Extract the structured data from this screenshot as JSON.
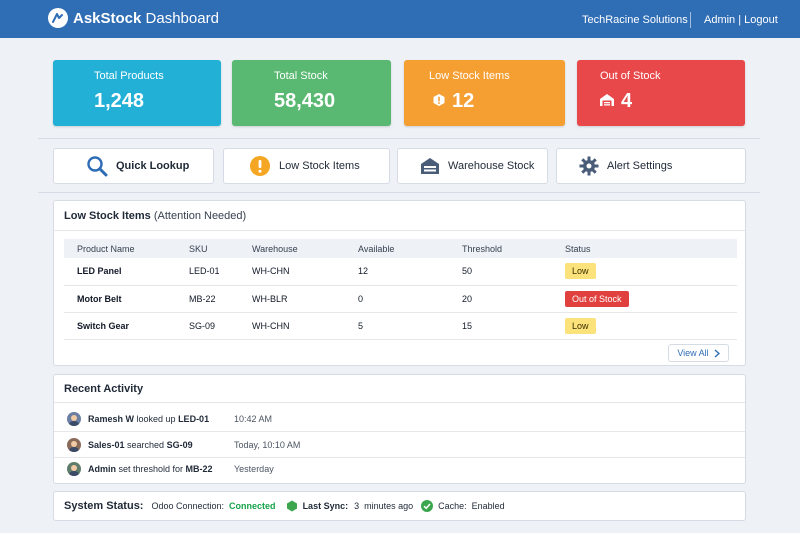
{
  "header": {
    "brand_bold": "AskStock",
    "brand_rest": " Dashboard",
    "company": "TechRacine Solutions",
    "user": "Admin",
    "separator": " | ",
    "logout": "Logout"
  },
  "stats": [
    {
      "label": "Total Products",
      "value": "1,248"
    },
    {
      "label": "Total Stock",
      "value": "58,430"
    },
    {
      "label": "Low Stock Items",
      "value": "12",
      "icon": "alert-icon"
    },
    {
      "label": "Out of Stock",
      "value": "4",
      "icon": "warehouse-icon"
    }
  ],
  "quick_actions": [
    {
      "label": "Quick Lookup",
      "icon": "search-icon"
    },
    {
      "label": "Low Stock Items",
      "icon": "exclamation-icon"
    },
    {
      "label": "Warehouse Stock",
      "icon": "warehouse-icon"
    },
    {
      "label": "Alert Settings",
      "icon": "gear-icon"
    }
  ],
  "low_stock": {
    "title": "Low Stock Items",
    "subtitle": "(Attention Needed)",
    "columns": [
      "Product Name",
      "SKU",
      "Warehouse",
      "Available",
      "Threshold",
      "Status"
    ],
    "rows": [
      {
        "product": "LED Panel",
        "sku": "LED-01",
        "warehouse": "WH-CHN",
        "available": "12",
        "threshold": "50",
        "status": "Low",
        "status_type": "low"
      },
      {
        "product": "Motor Belt",
        "sku": "MB-22",
        "warehouse": "WH-BLR",
        "available": "0",
        "threshold": "20",
        "status": "Out of Stock",
        "status_type": "out"
      },
      {
        "product": "Switch Gear",
        "sku": "SG-09",
        "warehouse": "WH-CHN",
        "available": "5",
        "threshold": "15",
        "status": "Low",
        "status_type": "low"
      }
    ],
    "view_all": "View All"
  },
  "activity": {
    "title": "Recent Activity",
    "items": [
      {
        "user": "Ramesh W",
        "action": " looked up ",
        "target": "LED-01",
        "time": "10:42 AM"
      },
      {
        "user": "Sales-01",
        "action": " searched ",
        "target": "SG-09",
        "time": "Today, 10:10 AM"
      },
      {
        "user": "Admin",
        "action": " set threshold for ",
        "target": "MB-22",
        "time": "Yesterday"
      }
    ]
  },
  "system_status": {
    "label": "System Status:",
    "odoo_label": "Odoo Connection:",
    "odoo_value": "Connected",
    "sync_label": "Last Sync:",
    "sync_value": "3  minutes ago",
    "cache_label": "Cache:",
    "cache_value": "Enabled"
  },
  "colors": {
    "header": "#2f6db5",
    "card_total_products": "#23b0d6",
    "card_total_stock": "#59b871",
    "card_low_stock": "#f59e32",
    "card_out_of_stock": "#e8484a",
    "status_low": "#fbe27a",
    "status_out": "#e0413f",
    "connected": "#16a34a"
  }
}
